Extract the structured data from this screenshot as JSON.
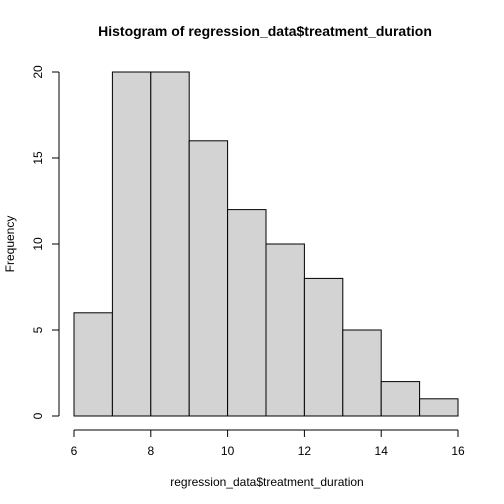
{
  "chart_data": {
    "type": "bar",
    "title": "Histogram of regression_data$treatment_duration",
    "xlabel": "regression_data$treatment_duration",
    "ylabel": "Frequency",
    "bins": [
      {
        "from": 6,
        "to": 7,
        "count": 6
      },
      {
        "from": 7,
        "to": 8,
        "count": 20
      },
      {
        "from": 8,
        "to": 9,
        "count": 20
      },
      {
        "from": 9,
        "to": 10,
        "count": 16
      },
      {
        "from": 10,
        "to": 11,
        "count": 12
      },
      {
        "from": 11,
        "to": 12,
        "count": 10
      },
      {
        "from": 12,
        "to": 13,
        "count": 8
      },
      {
        "from": 13,
        "to": 14,
        "count": 5
      },
      {
        "from": 14,
        "to": 15,
        "count": 2
      },
      {
        "from": 15,
        "to": 16,
        "count": 1
      }
    ],
    "xlim": [
      6,
      16
    ],
    "ylim": [
      0,
      20
    ],
    "xticks": [
      "6",
      "8",
      "10",
      "12",
      "14",
      "16"
    ],
    "yticks": [
      "0",
      "5",
      "10",
      "15",
      "20"
    ],
    "bar_color": "#d3d3d3",
    "grid": false,
    "legend": "none"
  }
}
